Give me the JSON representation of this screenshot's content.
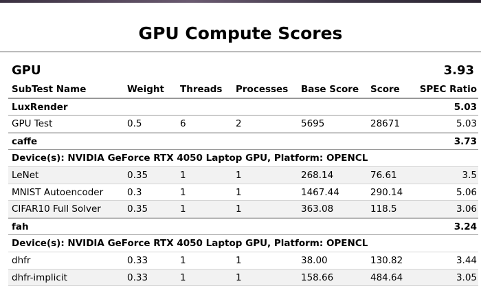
{
  "header": {
    "title": "GPU Compute Scores"
  },
  "summary": {
    "name": "GPU",
    "score": "3.93"
  },
  "columns": [
    "SubTest Name",
    "Weight",
    "Threads",
    "Processes",
    "Base Score",
    "Score",
    "SPEC Ratio"
  ],
  "groups": [
    {
      "name": "LuxRender",
      "score": "5.03",
      "device": null,
      "rows": [
        [
          "GPU Test",
          "0.5",
          "6",
          "2",
          "5695",
          "28671",
          "5.03"
        ]
      ]
    },
    {
      "name": "caffe",
      "score": "3.73",
      "device": "Device(s): NVIDIA GeForce RTX 4050 Laptop GPU, Platform: OPENCL",
      "rows": [
        [
          "LeNet",
          "0.35",
          "1",
          "1",
          "268.14",
          "76.61",
          "3.5"
        ],
        [
          "MNIST Autoencoder",
          "0.3",
          "1",
          "1",
          "1467.44",
          "290.14",
          "5.06"
        ],
        [
          "CIFAR10 Full Solver",
          "0.35",
          "1",
          "1",
          "363.08",
          "118.5",
          "3.06"
        ]
      ]
    },
    {
      "name": "fah",
      "score": "3.24",
      "device": "Device(s): NVIDIA GeForce RTX 4050 Laptop GPU, Platform: OPENCL",
      "rows": [
        [
          "dhfr",
          "0.33",
          "1",
          "1",
          "38.00",
          "130.82",
          "3.44"
        ],
        [
          "dhfr-implicit",
          "0.33",
          "1",
          "1",
          "158.66",
          "484.64",
          "3.05"
        ]
      ]
    }
  ]
}
